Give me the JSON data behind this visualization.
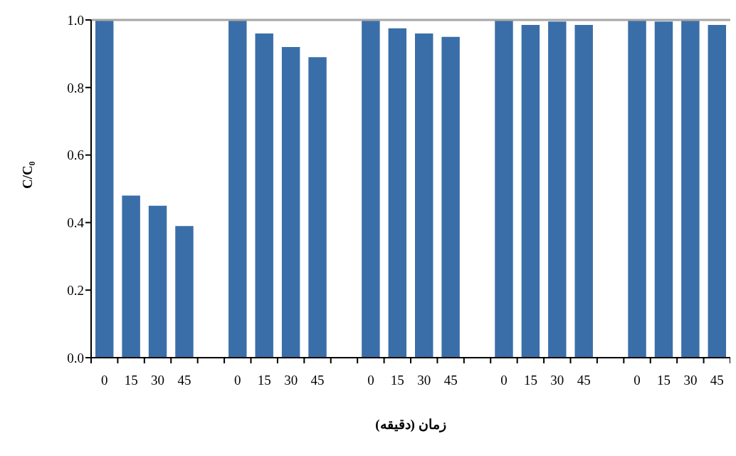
{
  "chart_data": {
    "type": "bar",
    "xlabel": "زمان (دقیقه)",
    "ylabel": "C/C₀",
    "categories": [
      "0",
      "15",
      "30",
      "45",
      null,
      "0",
      "15",
      "30",
      "45",
      null,
      "0",
      "15",
      "30",
      "45",
      null,
      "0",
      "15",
      "30",
      "45",
      null,
      "0",
      "15",
      "30",
      "45"
    ],
    "values": [
      1.0,
      0.48,
      0.45,
      0.39,
      null,
      1.0,
      0.96,
      0.92,
      0.89,
      null,
      1.0,
      0.975,
      0.96,
      0.95,
      null,
      1.0,
      0.985,
      0.995,
      0.985,
      null,
      1.0,
      0.995,
      1.0,
      0.985
    ],
    "color": "#3a6ea8",
    "ylim": [
      0,
      1
    ],
    "yticks": [
      {
        "value": 0,
        "label": "0.0"
      },
      {
        "value": 0.2,
        "label": "0.2"
      },
      {
        "value": 0.4,
        "label": "0.4"
      },
      {
        "value": 0.6,
        "label": "0.6"
      },
      {
        "value": 0.8,
        "label": "0.8"
      },
      {
        "value": 1,
        "label": "1.0"
      }
    ],
    "ref_lines": [
      {
        "axis": "y",
        "value": 1,
        "color": "#a6a6a6"
      }
    ],
    "grid": false,
    "legend": false
  }
}
